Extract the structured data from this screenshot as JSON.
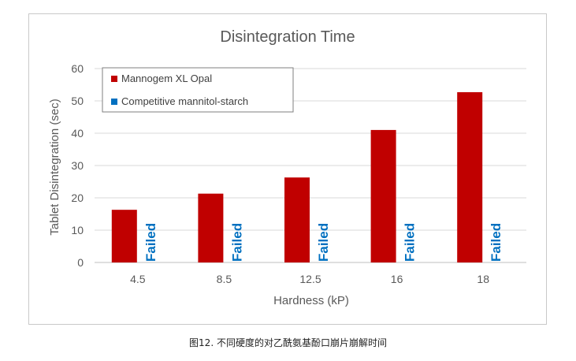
{
  "chart_data": {
    "type": "bar",
    "title": "Disintegration Time",
    "xlabel": "Hardness (kP)",
    "ylabel": "Tablet Disintegration (sec)",
    "categories": [
      "4.5",
      "8.5",
      "12.5",
      "16",
      "18"
    ],
    "ylim": [
      0,
      60
    ],
    "yticks": [
      0,
      10,
      20,
      30,
      40,
      50,
      60
    ],
    "grid": true,
    "legend_position": "top-left",
    "series": [
      {
        "name": "Mannogem XL Opal",
        "color": "#c00000",
        "values": [
          16.3,
          21.3,
          26.3,
          41.0,
          52.7
        ]
      },
      {
        "name": "Competitive mannitol-starch",
        "color": "#0070c0",
        "values": [
          null,
          null,
          null,
          null,
          null
        ]
      }
    ],
    "failed_label": "Failed",
    "failed_color": "#0070c0"
  },
  "caption": "图12. 不同硬度的对乙酰氨基酚口崩片崩解时间"
}
